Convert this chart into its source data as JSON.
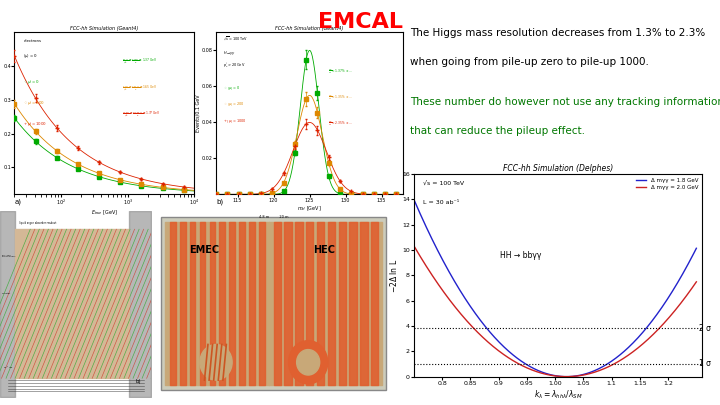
{
  "title": "EMCAL",
  "title_color": "#FF0000",
  "title_fontsize": 16,
  "text1_line1": "The Higgs mass resolution decreases from 1.3% to 2.3%",
  "text1_line2": "when going from pile-up zero to pile-up 1000.",
  "text1_color": "#000000",
  "text1_fontsize": 7.5,
  "text2_line1": "These number do however not use any tracking information",
  "text2_line2": "that can reduce the pileup effect.",
  "text2_color": "#007700",
  "text2_fontsize": 7.5,
  "plot_title": "FCC-hh Simulation (Delphes)",
  "plot_xlabel": "kλ = λ_{hhλ}/λ_{SM}",
  "plot_ylabel": "-2Δ ln L",
  "label_blue": "Δ mγγ = 1.8 GeV",
  "label_red": "Δ mγγ = 2.0 GeV",
  "ann_sqrts": "√s = 100 TeV",
  "ann_lumi": "L = 30 ab⁻¹",
  "ann_proc": "HH → bbγγ",
  "sigma1_val": 1.0,
  "sigma2_val": 3.84,
  "sigma1_label": "1 σ",
  "sigma2_label": "2 σ",
  "xmin": 0.75,
  "xmax": 1.25,
  "ymin": 0,
  "ymax": 16,
  "blue_color": "#2222CC",
  "red_color": "#CC2222",
  "bg_color": "#FFFFFF",
  "plot_a_title": "FCC-hh Simulation (Geant4)",
  "plot_b_title": "FCC-hh Simulation (Geant4)",
  "color_pu0": "#00AA00",
  "color_pu200": "#DD8800",
  "color_pu1000": "#DD2200"
}
